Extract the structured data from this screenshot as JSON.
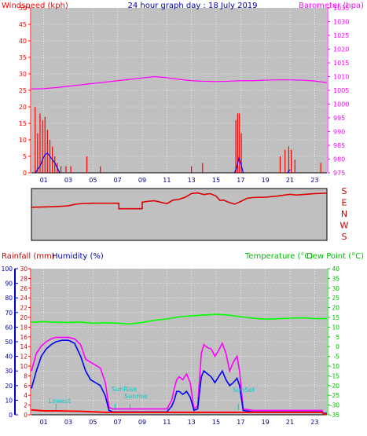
{
  "header": {
    "windspeed_label": "Windspeed (kph)",
    "title": "24 hour graph day : 18 July 2019",
    "barometer_label": "Barometer (hpa)"
  },
  "colors": {
    "wind": "#ff0000",
    "gust": "#0000ff",
    "baro": "#ff00ff",
    "direction": "#dd0000",
    "rain": "#ff0000",
    "humidity": "#0000ff",
    "temperature": "#ff00ff",
    "dewpoint": "#0000cc",
    "temp_axis": "#00cc00",
    "solar": "#00ff00",
    "annotation": "#00cccc",
    "plot_bg": "#c0c0c0"
  },
  "chart_data": [
    {
      "id": "wind-baro",
      "type": "line",
      "x_ticks": [
        "01",
        "03",
        "05",
        "07",
        "09",
        "11",
        "13",
        "15",
        "17",
        "19",
        "21",
        "23"
      ],
      "left_axis": {
        "label": "Windspeed (kph)",
        "ylim": [
          0,
          50
        ],
        "ticks": [
          0,
          5,
          10,
          15,
          20,
          25,
          30,
          35,
          40,
          45,
          50
        ]
      },
      "right_axis": {
        "label": "Barometer (hpa)",
        "ylim": [
          975,
          1035
        ],
        "ticks": [
          975,
          980,
          985,
          990,
          995,
          1000,
          1005,
          1010,
          1015,
          1020,
          1025,
          1030,
          1035
        ]
      },
      "series": [
        {
          "name": "Barometer",
          "axis": "right",
          "x": [
            0,
            1,
            2,
            3,
            4,
            5,
            6,
            7,
            8,
            9,
            10,
            11,
            12,
            13,
            14,
            15,
            16,
            17,
            18,
            19,
            20,
            21,
            22,
            23,
            24
          ],
          "values": [
            1005.5,
            1005.6,
            1006,
            1006.5,
            1007,
            1007.5,
            1008,
            1008.5,
            1009,
            1009.5,
            1010,
            1009.6,
            1009,
            1008.5,
            1008.3,
            1008.2,
            1008.3,
            1008.5,
            1008.5,
            1008.7,
            1008.8,
            1008.8,
            1008.7,
            1008.4,
            1007.8
          ]
        },
        {
          "name": "Windspeed",
          "axis": "left",
          "x": [
            0.3,
            0.5,
            0.7,
            0.9,
            1.1,
            1.3,
            1.5,
            1.7,
            1.9,
            2.1,
            2.4,
            2.8,
            3.2,
            4.5,
            5.6,
            13,
            13.9,
            16.6,
            16.75,
            16.9,
            17.05,
            20.2,
            20.6,
            20.9,
            21.1,
            21.4,
            23.5
          ],
          "values": [
            20,
            12,
            18,
            16,
            17,
            13,
            10,
            8,
            5,
            3,
            2,
            2,
            2,
            5,
            2,
            2,
            3,
            16,
            18,
            18,
            12,
            5,
            7,
            8,
            7,
            4,
            3
          ]
        },
        {
          "name": "Gust",
          "axis": "left",
          "x": [
            0.3,
            0.5,
            0.7,
            0.9,
            1.1,
            1.3,
            1.5,
            1.7,
            1.9,
            2.1,
            2.3,
            16.5,
            16.7,
            16.85,
            17,
            17.2,
            20.8,
            21
          ],
          "values": [
            0,
            1,
            2,
            4,
            5.5,
            6,
            5,
            4,
            3,
            1.5,
            0,
            0,
            2,
            4.5,
            3,
            0,
            0,
            1
          ]
        }
      ]
    },
    {
      "id": "wind-direction",
      "type": "line",
      "right_axis": {
        "ticks": [
          "S",
          "E",
          "N",
          "W",
          "S"
        ]
      },
      "series": [
        {
          "name": "Direction",
          "x": [
            0,
            1,
            2,
            3,
            3.5,
            4,
            5,
            6,
            6.5,
            7,
            7.1,
            8,
            8.9,
            9,
            9.5,
            10,
            11,
            11.5,
            12,
            12.5,
            13,
            13.5,
            14,
            14.5,
            15,
            15.3,
            15.6,
            16,
            16.5,
            17,
            17.5,
            18,
            19,
            20,
            21,
            21.5,
            22,
            23,
            24
          ],
          "values": [
            310,
            308,
            305,
            300,
            290,
            285,
            282,
            282,
            282,
            282,
            320,
            320,
            320,
            275,
            268,
            265,
            285,
            260,
            255,
            240,
            215,
            210,
            222,
            215,
            232,
            262,
            260,
            275,
            288,
            270,
            248,
            242,
            240,
            232,
            220,
            225,
            222,
            215,
            212
          ]
        }
      ]
    },
    {
      "id": "rain-humidity-temp",
      "type": "line",
      "x_ticks": [
        "01",
        "03",
        "05",
        "07",
        "09",
        "11",
        "13",
        "15",
        "17",
        "19",
        "21",
        "23"
      ],
      "left_axis_humidity": {
        "label": "Humidity (%)",
        "ylim": [
          0,
          100
        ],
        "ticks": [
          0,
          10,
          20,
          30,
          40,
          50,
          60,
          70,
          80,
          90,
          100
        ]
      },
      "left_axis_rain": {
        "label": "Rainfall (mm)",
        "ylim": [
          0,
          30
        ],
        "ticks": [
          0,
          2,
          4,
          6,
          8,
          10,
          12,
          14,
          16,
          18,
          20,
          22,
          24,
          26,
          28,
          30
        ]
      },
      "right_axis_temp": {
        "label": "Temperature (°C)",
        "ylim": [
          -35,
          40
        ],
        "ticks": [
          -35,
          -30,
          -25,
          -20,
          -15,
          -10,
          -5,
          0,
          5,
          10,
          15,
          20,
          25,
          30,
          35,
          40
        ]
      },
      "series": [
        {
          "name": "Temperature",
          "axis": "temp",
          "x": [
            0,
            1,
            2,
            3,
            4,
            5,
            6,
            7,
            8,
            9,
            10,
            11,
            12,
            13,
            14,
            15,
            16,
            17,
            18,
            19,
            20,
            21,
            22,
            23,
            24
          ],
          "values": [
            12.5,
            12.8,
            12.5,
            12.4,
            12.6,
            12,
            12.2,
            12,
            11.6,
            12.4,
            13.5,
            14.2,
            15.3,
            15.8,
            16.2,
            16.6,
            16.2,
            15.3,
            14.6,
            14.1,
            14.3,
            14.6,
            14.8,
            14.4,
            14.4
          ]
        },
        {
          "name": "Temperature (°C)",
          "axis": "humidity",
          "x": [
            0,
            0.4,
            0.8,
            1.2,
            1.6,
            2,
            2.5,
            3,
            3.5,
            4,
            4.4,
            4.8,
            5.2,
            5.6,
            6,
            6.3,
            6.6,
            7,
            8,
            9,
            10,
            10.5,
            11,
            11.4,
            11.6,
            11.8,
            12,
            12.3,
            12.6,
            12.9,
            13.2,
            13.5,
            13.8,
            14,
            14.3,
            14.6,
            14.9,
            15.2,
            15.5,
            15.8,
            16.1,
            16.4,
            16.7,
            16.9,
            17.2,
            18,
            20,
            22,
            23.6,
            23.7,
            24
          ],
          "values": [
            30,
            42,
            47,
            50,
            52,
            53,
            53,
            53,
            52,
            48,
            38,
            36,
            34,
            32,
            22,
            5,
            4,
            4,
            4,
            4,
            4,
            4,
            4,
            10,
            18,
            24,
            26,
            24,
            28,
            22,
            4,
            6,
            42,
            48,
            46,
            45,
            40,
            44,
            49,
            42,
            30,
            36,
            40,
            30,
            4,
            3,
            3,
            3,
            3,
            1,
            1
          ]
        },
        {
          "name": "Humidity",
          "axis": "humidity",
          "x": [
            0,
            0.4,
            0.8,
            1.2,
            1.6,
            2,
            2.5,
            3,
            3.5,
            4,
            4.4,
            4.8,
            5.2,
            5.6,
            6,
            6.3,
            6.6,
            7,
            8,
            9,
            10,
            10.5,
            11,
            11.4,
            11.6,
            11.8,
            12,
            12.3,
            12.6,
            12.9,
            13.2,
            13.5,
            13.8,
            14,
            14.3,
            14.6,
            14.9,
            15.2,
            15.5,
            15.8,
            16.1,
            16.4,
            16.7,
            16.9,
            17.2,
            18,
            20,
            22,
            23.6,
            23.7,
            24
          ],
          "values": [
            18,
            30,
            40,
            45,
            48,
            50,
            51,
            51,
            49,
            40,
            30,
            24,
            22,
            20,
            13,
            3,
            2,
            2,
            2,
            2,
            2,
            2,
            2,
            6,
            10,
            16,
            16,
            14,
            16,
            12,
            3,
            4,
            26,
            30,
            28,
            26,
            22,
            26,
            30,
            24,
            20,
            22,
            25,
            20,
            3,
            2,
            2,
            2,
            2,
            1,
            1
          ]
        },
        {
          "name": "Rainfall",
          "axis": "rain",
          "x": [
            0,
            1,
            2,
            4,
            6,
            8,
            10,
            12,
            14,
            16,
            18,
            20,
            22,
            23.6,
            23.8,
            24
          ],
          "values": [
            1,
            0.8,
            0.8,
            0.7,
            0.5,
            0.5,
            0.5,
            0.5,
            0.5,
            0.5,
            0.5,
            0.5,
            0.5,
            0.5,
            0.1,
            0.1
          ]
        }
      ]
    }
  ],
  "annotations": {
    "low_left": "Lowest",
    "sunrise": "SunRise",
    "sunrise2": "Sunrise",
    "sunset": "SunSet"
  },
  "bottom_header": {
    "rainfall_label": "Rainfall (mm)",
    "humidity_label": "Humidity (%)",
    "temperature_label": "Temperature (°C)",
    "dewpoint_label": "Dew Point (°C)"
  }
}
